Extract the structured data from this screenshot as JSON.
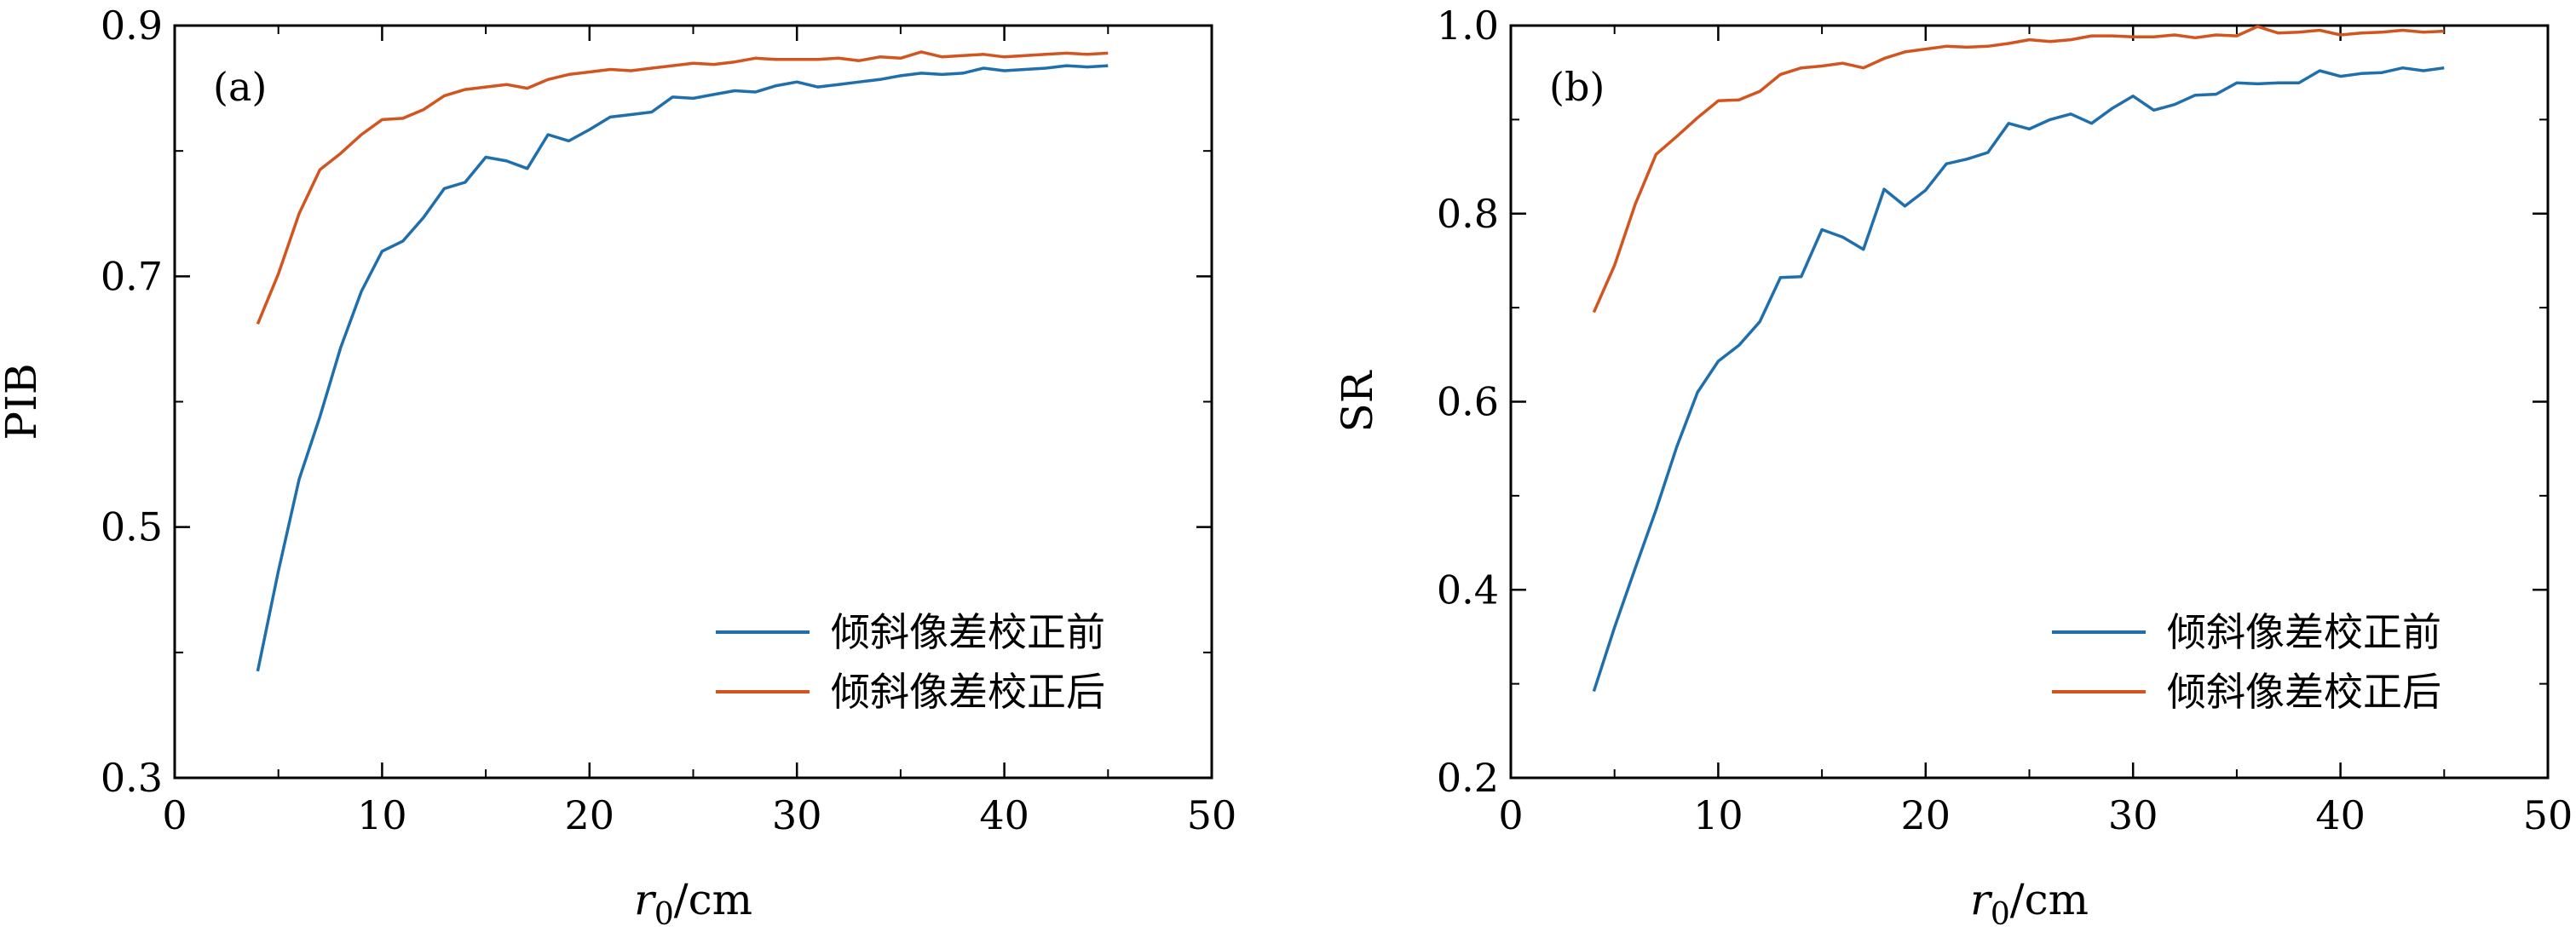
{
  "chart_data": [
    {
      "type": "line",
      "panel_label": "(a)",
      "xlabel": "r₀/cm",
      "xlabel_parts": {
        "var": "r",
        "sub": "0",
        "unit": "/cm"
      },
      "ylabel": "PIB",
      "xlim": [
        0,
        50
      ],
      "ylim": [
        0.3,
        0.9
      ],
      "xticks": [
        0,
        10,
        20,
        30,
        40,
        50
      ],
      "xtick_labels": [
        "0",
        "10",
        "20",
        "30",
        "40",
        "50"
      ],
      "yticks": [
        0.3,
        0.5,
        0.7,
        0.9
      ],
      "ytick_labels": [
        "0.3",
        "0.5",
        "0.7",
        "0.9"
      ],
      "yminor": [
        0.4,
        0.6,
        0.8
      ],
      "grid": false,
      "legend_position": "lower-right",
      "x": [
        4,
        5,
        6,
        7,
        8,
        9,
        10,
        11,
        12,
        13,
        14,
        15,
        16,
        17,
        18,
        19,
        20,
        21,
        22,
        23,
        24,
        25,
        26,
        27,
        28,
        29,
        30,
        31,
        32,
        33,
        34,
        35,
        36,
        37,
        38,
        39,
        40,
        41,
        42,
        43,
        44,
        45
      ],
      "series": [
        {
          "name": "倾斜像差校正前",
          "color": "#1f6fad",
          "values": [
            0.385,
            0.465,
            0.538,
            0.588,
            0.643,
            0.688,
            0.72,
            0.728,
            0.747,
            0.77,
            0.775,
            0.795,
            0.792,
            0.786,
            0.813,
            0.808,
            0.817,
            0.827,
            0.829,
            0.831,
            0.843,
            0.842,
            0.845,
            0.848,
            0.847,
            0.852,
            0.855,
            0.851,
            0.853,
            0.855,
            0.857,
            0.86,
            0.862,
            0.861,
            0.862,
            0.866,
            0.864,
            0.865,
            0.866,
            0.868,
            0.867,
            0.868
          ]
        },
        {
          "name": "倾斜像差校正后",
          "color": "#d2541f",
          "values": [
            0.662,
            0.702,
            0.75,
            0.785,
            0.798,
            0.813,
            0.825,
            0.826,
            0.833,
            0.844,
            0.849,
            0.851,
            0.853,
            0.85,
            0.857,
            0.861,
            0.863,
            0.865,
            0.864,
            0.866,
            0.868,
            0.87,
            0.869,
            0.871,
            0.874,
            0.873,
            0.873,
            0.873,
            0.874,
            0.872,
            0.875,
            0.874,
            0.879,
            0.875,
            0.876,
            0.877,
            0.875,
            0.876,
            0.877,
            0.878,
            0.877,
            0.878
          ]
        }
      ]
    },
    {
      "type": "line",
      "panel_label": "(b)",
      "xlabel": "r₀/cm",
      "xlabel_parts": {
        "var": "r",
        "sub": "0",
        "unit": "/cm"
      },
      "ylabel": "SR",
      "xlim": [
        0,
        50
      ],
      "ylim": [
        0.2,
        1.0
      ],
      "xticks": [
        0,
        10,
        20,
        30,
        40,
        50
      ],
      "xtick_labels": [
        "0",
        "10",
        "20",
        "30",
        "40",
        "50"
      ],
      "yticks": [
        0.2,
        0.4,
        0.6,
        0.8,
        1.0
      ],
      "ytick_labels": [
        "0.2",
        "0.4",
        "0.6",
        "0.8",
        "1.0"
      ],
      "yminor": [
        0.3,
        0.5,
        0.7,
        0.9
      ],
      "grid": false,
      "legend_position": "lower-right",
      "x": [
        4,
        5,
        6,
        7,
        8,
        9,
        10,
        11,
        12,
        13,
        14,
        15,
        16,
        17,
        18,
        19,
        20,
        21,
        22,
        23,
        24,
        25,
        26,
        27,
        28,
        29,
        30,
        31,
        32,
        33,
        34,
        35,
        36,
        37,
        38,
        39,
        40,
        41,
        42,
        43,
        44,
        45
      ],
      "series": [
        {
          "name": "倾斜像差校正前",
          "color": "#1f6fad",
          "values": [
            0.292,
            0.36,
            0.423,
            0.485,
            0.552,
            0.61,
            0.643,
            0.66,
            0.685,
            0.732,
            0.733,
            0.783,
            0.775,
            0.762,
            0.826,
            0.808,
            0.825,
            0.853,
            0.858,
            0.865,
            0.896,
            0.89,
            0.9,
            0.906,
            0.896,
            0.912,
            0.925,
            0.91,
            0.916,
            0.926,
            0.927,
            0.939,
            0.938,
            0.939,
            0.939,
            0.952,
            0.946,
            0.949,
            0.95,
            0.955,
            0.952,
            0.955
          ]
        },
        {
          "name": "倾斜像差校正后",
          "color": "#d2541f",
          "values": [
            0.695,
            0.745,
            0.81,
            0.863,
            0.882,
            0.902,
            0.92,
            0.921,
            0.93,
            0.948,
            0.955,
            0.957,
            0.96,
            0.955,
            0.965,
            0.972,
            0.975,
            0.978,
            0.977,
            0.978,
            0.981,
            0.985,
            0.983,
            0.985,
            0.989,
            0.989,
            0.988,
            0.988,
            0.99,
            0.987,
            0.99,
            0.989,
            0.999,
            0.992,
            0.993,
            0.995,
            0.99,
            0.992,
            0.993,
            0.995,
            0.993,
            0.994
          ]
        }
      ]
    }
  ]
}
